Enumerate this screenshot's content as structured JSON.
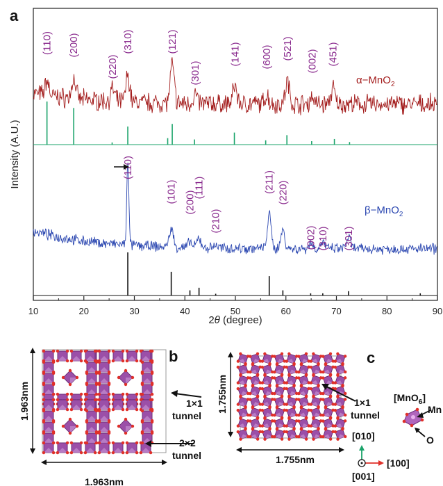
{
  "chart_data": {
    "type": "line",
    "panel_labels": [
      "a",
      "b",
      "c"
    ],
    "xlabel_prefix": "2",
    "xlabel_theta": "θ",
    "xlabel_suffix": " (degree)",
    "ylabel": "Intensity (A.U.)",
    "xlim": [
      10,
      90
    ],
    "x_ticks": [
      "10",
      "20",
      "30",
      "40",
      "50",
      "60",
      "70",
      "80",
      "90"
    ],
    "series": [
      {
        "name": "α−MnO₂",
        "name_base": "α−MnO",
        "name_sub": "2",
        "kind": "experimental",
        "color": "#a31c1c",
        "peaks": [
          {
            "x": 12.7,
            "h": 0.55,
            "label": "(110)"
          },
          {
            "x": 18.0,
            "h": 0.75,
            "label": "(200)"
          },
          {
            "x": 25.7,
            "h": 0.45,
            "label": "(220)"
          },
          {
            "x": 28.7,
            "h": 1.0,
            "label": "(310)"
          },
          {
            "x": 37.5,
            "h": 1.45,
            "label": "(121)"
          },
          {
            "x": 42.0,
            "h": 0.35,
            "label": "(301)"
          },
          {
            "x": 49.9,
            "h": 0.7,
            "label": "(141)"
          },
          {
            "x": 56.2,
            "h": 0.35,
            "label": "(600)"
          },
          {
            "x": 60.3,
            "h": 0.85,
            "label": "(521)"
          },
          {
            "x": 65.2,
            "h": 0.3,
            "label": "(002)"
          },
          {
            "x": 69.3,
            "h": 0.6,
            "label": "(451)"
          }
        ]
      },
      {
        "name": "α−MnO₂ reference",
        "kind": "reference",
        "color": "#1aa36a",
        "sticks": [
          {
            "x": 12.7,
            "h": 1.0
          },
          {
            "x": 18.0,
            "h": 0.85
          },
          {
            "x": 25.6,
            "h": 0.05
          },
          {
            "x": 28.7,
            "h": 0.42
          },
          {
            "x": 36.6,
            "h": 0.15
          },
          {
            "x": 37.5,
            "h": 0.48
          },
          {
            "x": 41.9,
            "h": 0.12
          },
          {
            "x": 49.8,
            "h": 0.28
          },
          {
            "x": 56.0,
            "h": 0.1
          },
          {
            "x": 60.2,
            "h": 0.22
          },
          {
            "x": 65.1,
            "h": 0.08
          },
          {
            "x": 69.6,
            "h": 0.13
          },
          {
            "x": 72.6,
            "h": 0.06
          }
        ]
      },
      {
        "name": "β−MnO₂",
        "name_base": "β−MnO",
        "name_sub": "2",
        "kind": "experimental",
        "color": "#2a46b0",
        "peaks": [
          {
            "x": 28.7,
            "h": 4.2,
            "label": "(110)"
          },
          {
            "x": 37.3,
            "h": 0.9,
            "label": "(101)"
          },
          {
            "x": 41.0,
            "h": 0.25,
            "label": "(200)"
          },
          {
            "x": 42.8,
            "h": 0.45,
            "label": "(111)"
          },
          {
            "x": 46.1,
            "h": 0.15,
            "label": "(210)"
          },
          {
            "x": 56.7,
            "h": 1.6,
            "label": "(211)"
          },
          {
            "x": 59.4,
            "h": 0.9,
            "label": "(220)"
          },
          {
            "x": 64.9,
            "h": 0.3,
            "label": "(002)"
          },
          {
            "x": 67.3,
            "h": 0.35,
            "label": "(310)"
          },
          {
            "x": 72.4,
            "h": 0.55,
            "label": "(301)"
          }
        ]
      },
      {
        "name": "β−MnO₂ reference",
        "kind": "reference",
        "color": "#111111",
        "sticks": [
          {
            "x": 28.7,
            "h": 1.0
          },
          {
            "x": 37.3,
            "h": 0.55
          },
          {
            "x": 41.0,
            "h": 0.12
          },
          {
            "x": 42.8,
            "h": 0.18
          },
          {
            "x": 46.1,
            "h": 0.04
          },
          {
            "x": 56.7,
            "h": 0.45
          },
          {
            "x": 59.4,
            "h": 0.12
          },
          {
            "x": 64.9,
            "h": 0.05
          },
          {
            "x": 67.3,
            "h": 0.05
          },
          {
            "x": 72.4,
            "h": 0.1
          },
          {
            "x": 86.6,
            "h": 0.05
          }
        ]
      }
    ],
    "structures": {
      "b": {
        "dim_vertical": "1.963nm",
        "dim_horizontal": "1.963nm",
        "tunnel_1": "1×1",
        "tunnel_1_word": "tunnel",
        "tunnel_2": "2×2",
        "tunnel_2_word": "tunnel"
      },
      "c": {
        "dim_vertical": "1.755nm",
        "dim_horizontal": "1.755nm",
        "tunnel": "1×1",
        "tunnel_word": "tunnel",
        "octahedron": "[MnO",
        "octahedron_sub": "6",
        "octahedron_close": "]",
        "mn_label": "Mn",
        "o_label": "O",
        "axis_010": "[010]",
        "axis_100": "[100]",
        "axis_001": "[001]"
      }
    },
    "colors": {
      "octahedron": "#9b4fa8",
      "octahedron_light": "#c58fd0",
      "oxygen": "#e0302a"
    }
  }
}
